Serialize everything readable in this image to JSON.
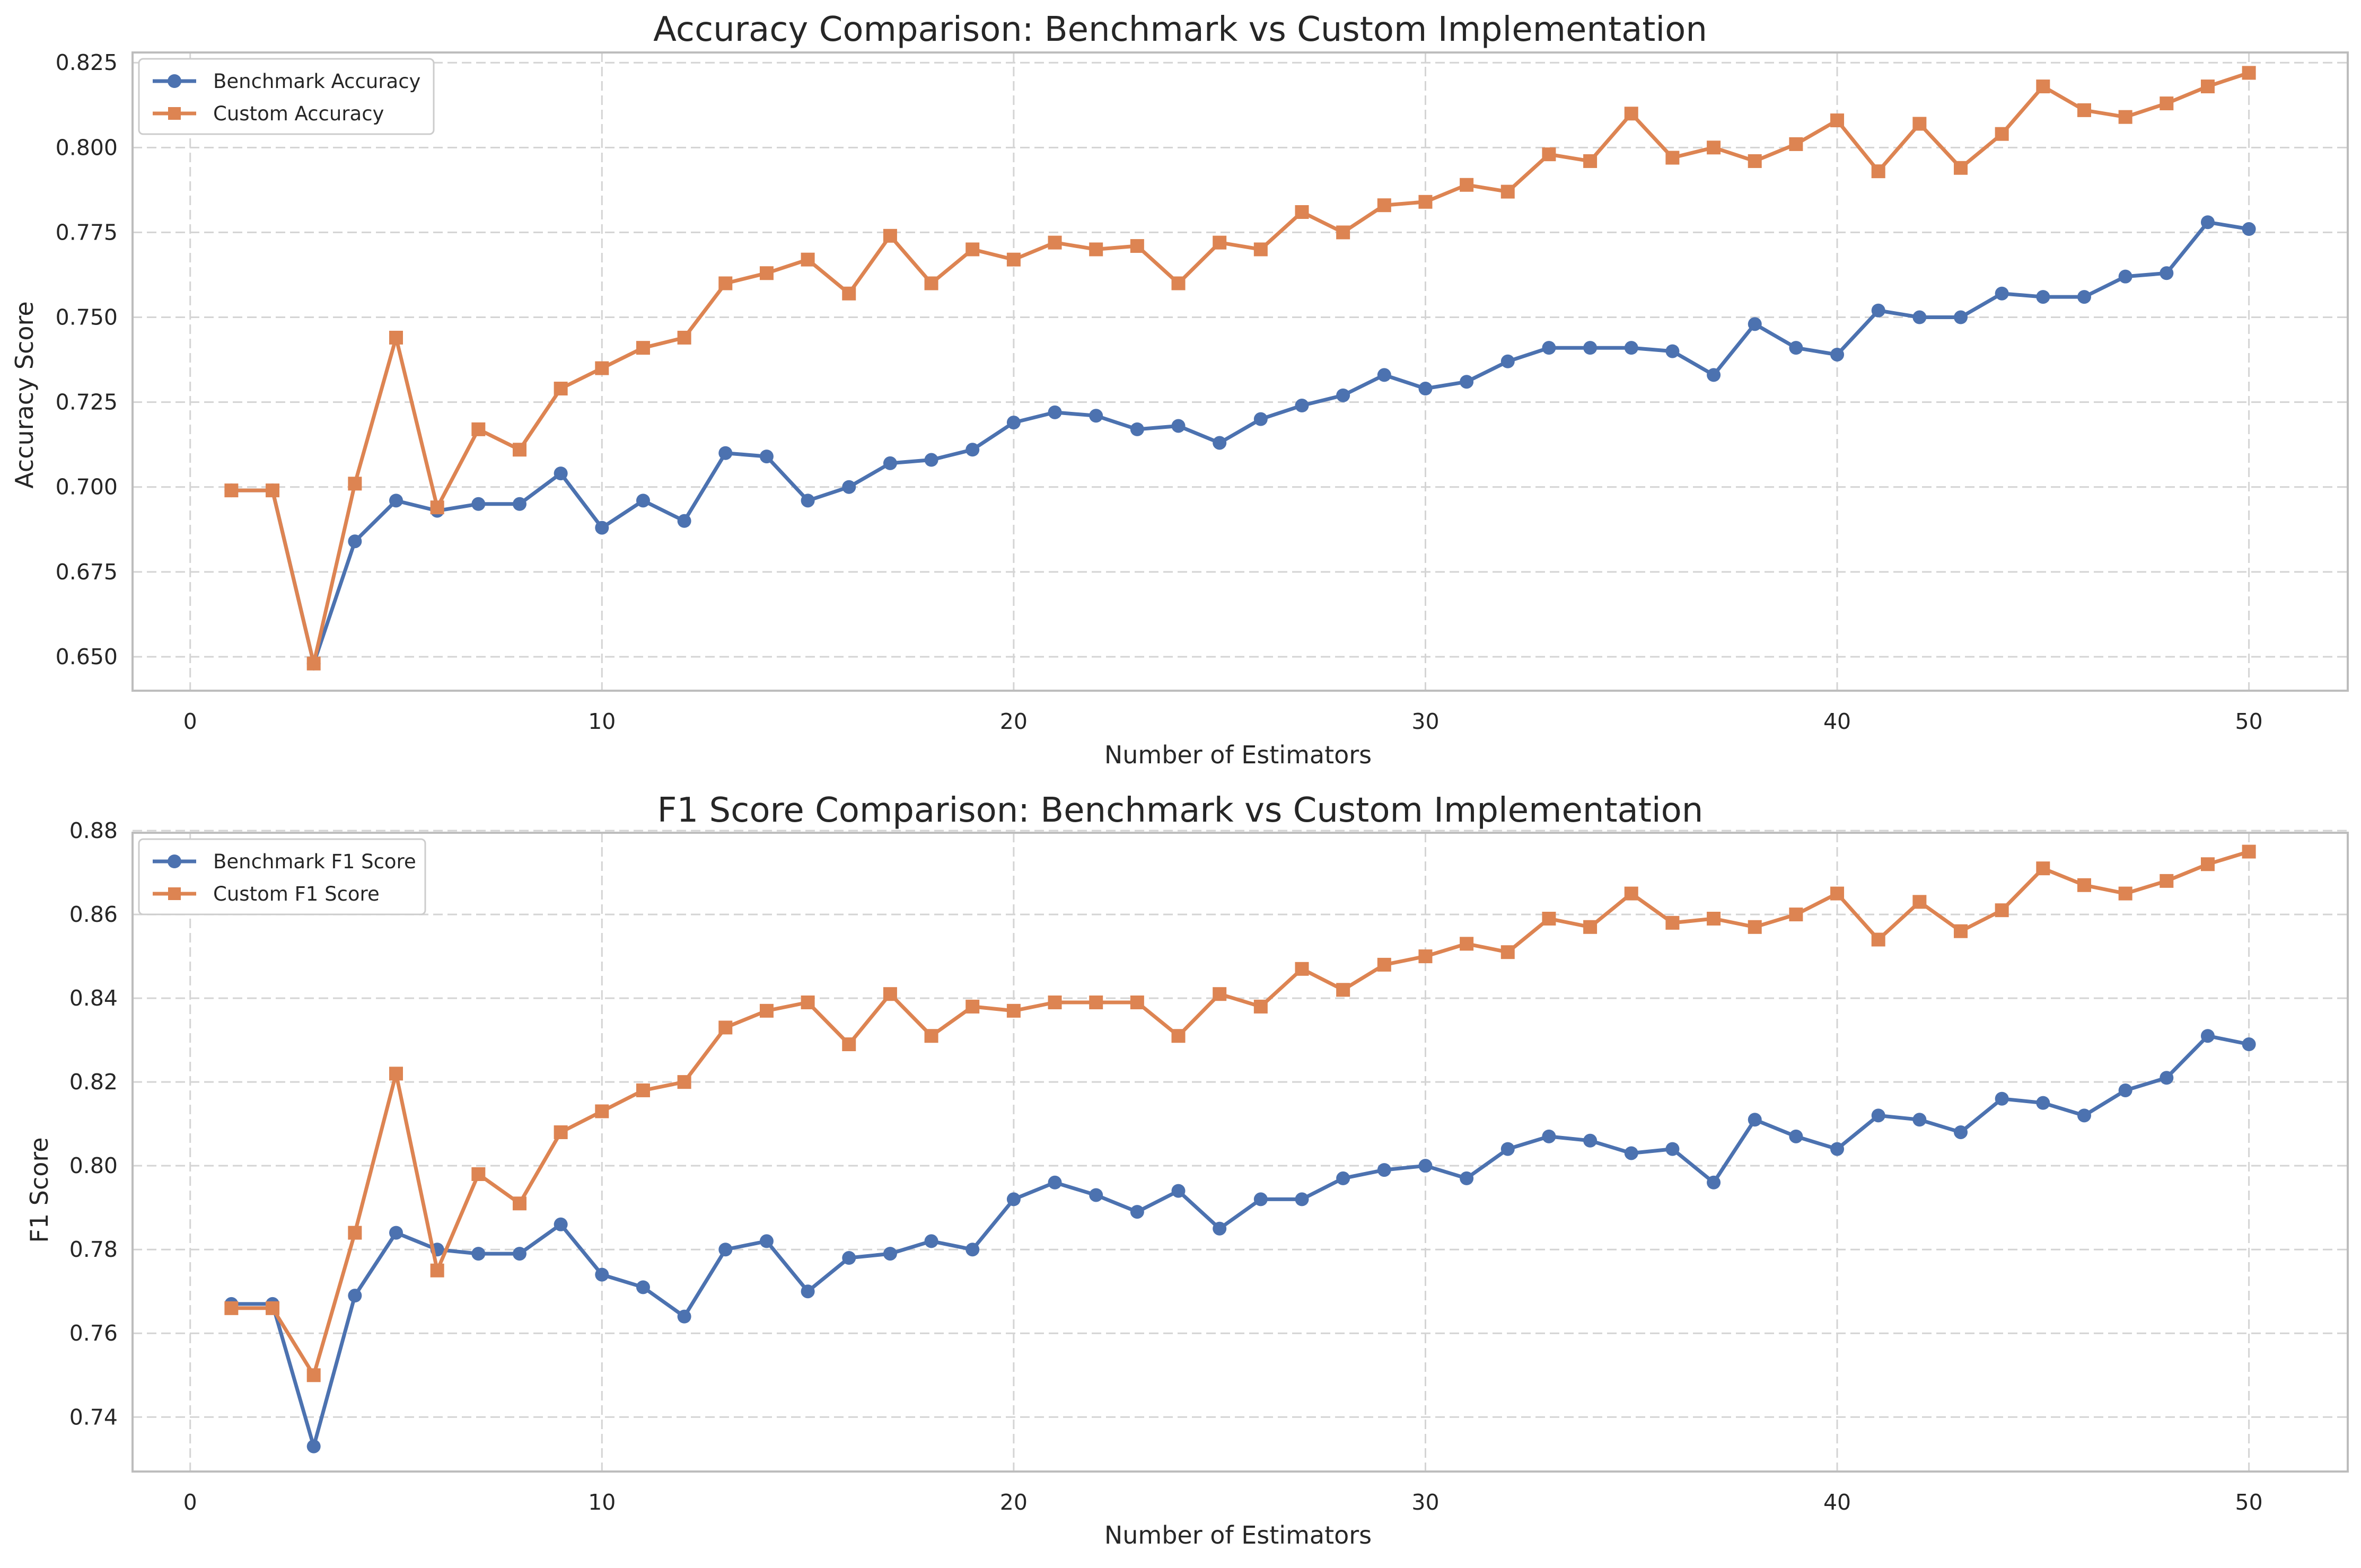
{
  "colors": {
    "benchmark": "#4c72b0",
    "custom": "#dd8452",
    "grid": "#d4d4d4",
    "spine": "#bdbdbd"
  },
  "chart_data": [
    {
      "type": "line",
      "title": "Accuracy Comparison: Benchmark vs Custom Implementation",
      "xlabel": "Number of Estimators",
      "ylabel": "Accuracy Score",
      "xlim": [
        -1.4,
        52.4
      ],
      "ylim": [
        0.64,
        0.828
      ],
      "xticks": [
        0,
        10,
        20,
        30,
        40,
        50
      ],
      "yticks": [
        0.65,
        0.675,
        0.7,
        0.725,
        0.75,
        0.775,
        0.8,
        0.825
      ],
      "ytick_labels": [
        "0.650",
        "0.675",
        "0.700",
        "0.725",
        "0.750",
        "0.775",
        "0.800",
        "0.825"
      ],
      "grid": true,
      "legend_position": "upper-left",
      "x": [
        1,
        2,
        3,
        4,
        5,
        6,
        7,
        8,
        9,
        10,
        11,
        12,
        13,
        14,
        15,
        16,
        17,
        18,
        19,
        20,
        21,
        22,
        23,
        24,
        25,
        26,
        27,
        28,
        29,
        30,
        31,
        32,
        33,
        34,
        35,
        36,
        37,
        38,
        39,
        40,
        41,
        42,
        43,
        44,
        45,
        46,
        47,
        48,
        49,
        50
      ],
      "series": [
        {
          "name": "Benchmark Accuracy",
          "color": "#4c72b0",
          "marker": "circle",
          "values": [
            0.699,
            0.699,
            0.648,
            0.684,
            0.696,
            0.693,
            0.695,
            0.695,
            0.704,
            0.688,
            0.696,
            0.69,
            0.71,
            0.709,
            0.696,
            0.7,
            0.707,
            0.708,
            0.711,
            0.719,
            0.722,
            0.721,
            0.717,
            0.718,
            0.713,
            0.72,
            0.724,
            0.727,
            0.733,
            0.729,
            0.731,
            0.737,
            0.741,
            0.741,
            0.741,
            0.74,
            0.733,
            0.748,
            0.741,
            0.739,
            0.752,
            0.75,
            0.75,
            0.757,
            0.756,
            0.756,
            0.762,
            0.763,
            0.778,
            0.776
          ]
        },
        {
          "name": "Custom Accuracy",
          "color": "#dd8452",
          "marker": "square",
          "values": [
            0.699,
            0.699,
            0.648,
            0.701,
            0.744,
            0.694,
            0.717,
            0.711,
            0.729,
            0.735,
            0.741,
            0.744,
            0.76,
            0.763,
            0.767,
            0.757,
            0.774,
            0.76,
            0.77,
            0.767,
            0.772,
            0.77,
            0.771,
            0.76,
            0.772,
            0.77,
            0.781,
            0.775,
            0.783,
            0.784,
            0.789,
            0.787,
            0.798,
            0.796,
            0.81,
            0.797,
            0.8,
            0.796,
            0.801,
            0.808,
            0.793,
            0.807,
            0.794,
            0.804,
            0.818,
            0.811,
            0.809,
            0.813,
            0.818,
            0.822
          ]
        }
      ]
    },
    {
      "type": "line",
      "title": "F1 Score Comparison: Benchmark vs Custom Implementation",
      "xlabel": "Number of Estimators",
      "ylabel": "F1 Score",
      "xlim": [
        -1.4,
        52.4
      ],
      "ylim": [
        0.727,
        0.8795
      ],
      "xticks": [
        0,
        10,
        20,
        30,
        40,
        50
      ],
      "yticks": [
        0.74,
        0.76,
        0.78,
        0.8,
        0.82,
        0.84,
        0.86,
        0.88
      ],
      "ytick_labels": [
        "0.74",
        "0.76",
        "0.78",
        "0.80",
        "0.82",
        "0.84",
        "0.86",
        "0.88"
      ],
      "grid": true,
      "legend_position": "upper-left",
      "x": [
        1,
        2,
        3,
        4,
        5,
        6,
        7,
        8,
        9,
        10,
        11,
        12,
        13,
        14,
        15,
        16,
        17,
        18,
        19,
        20,
        21,
        22,
        23,
        24,
        25,
        26,
        27,
        28,
        29,
        30,
        31,
        32,
        33,
        34,
        35,
        36,
        37,
        38,
        39,
        40,
        41,
        42,
        43,
        44,
        45,
        46,
        47,
        48,
        49,
        50
      ],
      "series": [
        {
          "name": "Benchmark F1 Score",
          "color": "#4c72b0",
          "marker": "circle",
          "values": [
            0.767,
            0.767,
            0.733,
            0.769,
            0.784,
            0.78,
            0.779,
            0.779,
            0.786,
            0.774,
            0.771,
            0.764,
            0.78,
            0.782,
            0.77,
            0.778,
            0.779,
            0.782,
            0.78,
            0.792,
            0.796,
            0.793,
            0.789,
            0.794,
            0.785,
            0.792,
            0.792,
            0.797,
            0.799,
            0.8,
            0.797,
            0.804,
            0.807,
            0.806,
            0.803,
            0.804,
            0.796,
            0.811,
            0.807,
            0.804,
            0.812,
            0.811,
            0.808,
            0.816,
            0.815,
            0.812,
            0.818,
            0.821,
            0.831,
            0.829
          ]
        },
        {
          "name": "Custom F1 Score",
          "color": "#dd8452",
          "marker": "square",
          "values": [
            0.766,
            0.766,
            0.75,
            0.784,
            0.822,
            0.775,
            0.798,
            0.791,
            0.808,
            0.813,
            0.818,
            0.82,
            0.833,
            0.837,
            0.839,
            0.829,
            0.841,
            0.831,
            0.838,
            0.837,
            0.839,
            0.839,
            0.839,
            0.831,
            0.841,
            0.838,
            0.847,
            0.842,
            0.848,
            0.85,
            0.853,
            0.851,
            0.859,
            0.857,
            0.865,
            0.858,
            0.859,
            0.857,
            0.86,
            0.865,
            0.854,
            0.863,
            0.856,
            0.861,
            0.871,
            0.867,
            0.865,
            0.868,
            0.872,
            0.875
          ]
        }
      ]
    }
  ]
}
